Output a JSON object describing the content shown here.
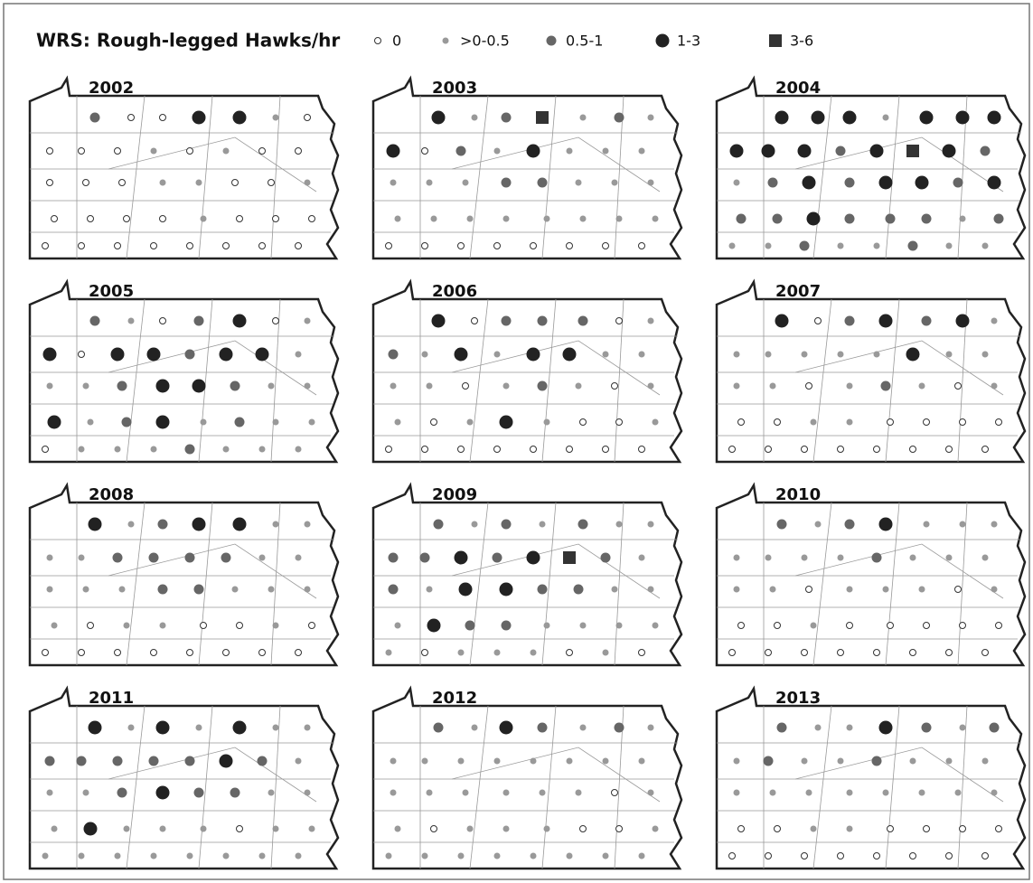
{
  "title": "WRS: Rough-legged Hawks/hr",
  "legend": [
    "0",
    ">0-0.5",
    "0.5-1",
    "1-3",
    "3-6"
  ],
  "maps": [
    {
      "year": "2002",
      "classes": [
        2,
        0,
        0,
        3,
        3,
        1,
        0,
        0,
        0,
        0,
        1,
        0,
        1,
        0,
        0,
        0,
        0,
        0,
        1,
        1,
        0,
        0,
        1,
        0,
        0,
        0,
        0,
        1,
        0,
        0,
        0,
        0,
        0,
        0,
        0,
        0,
        0,
        0,
        0
      ]
    },
    {
      "year": "2003",
      "classes": [
        3,
        1,
        2,
        4,
        1,
        2,
        1,
        3,
        0,
        2,
        1,
        3,
        1,
        1,
        1,
        1,
        1,
        1,
        2,
        2,
        1,
        1,
        1,
        1,
        1,
        1,
        1,
        1,
        1,
        1,
        1,
        0,
        0,
        0,
        0,
        0,
        0,
        0,
        0
      ]
    },
    {
      "year": "2004",
      "classes": [
        3,
        3,
        3,
        1,
        3,
        3,
        3,
        3,
        3,
        3,
        2,
        3,
        4,
        3,
        2,
        1,
        2,
        3,
        2,
        3,
        3,
        2,
        3,
        2,
        2,
        3,
        2,
        2,
        2,
        1,
        2,
        1,
        1,
        2,
        1,
        1,
        2,
        1,
        1
      ]
    },
    {
      "year": "2005",
      "classes": [
        2,
        1,
        0,
        2,
        3,
        0,
        1,
        3,
        0,
        3,
        3,
        2,
        3,
        3,
        1,
        1,
        1,
        2,
        3,
        3,
        2,
        1,
        1,
        3,
        1,
        2,
        3,
        1,
        2,
        1,
        1,
        0,
        1,
        1,
        1,
        2,
        1,
        1,
        1
      ]
    },
    {
      "year": "2006",
      "classes": [
        3,
        0,
        2,
        2,
        2,
        0,
        1,
        2,
        1,
        3,
        1,
        3,
        3,
        1,
        1,
        1,
        1,
        0,
        1,
        2,
        1,
        0,
        1,
        1,
        0,
        1,
        3,
        1,
        0,
        0,
        1,
        0,
        0,
        0,
        0,
        0,
        0,
        0,
        0
      ]
    },
    {
      "year": "2007",
      "classes": [
        3,
        0,
        2,
        3,
        2,
        3,
        1,
        1,
        1,
        1,
        1,
        1,
        3,
        1,
        1,
        1,
        1,
        0,
        1,
        2,
        1,
        0,
        1,
        0,
        0,
        1,
        1,
        0,
        0,
        0,
        0,
        0,
        0,
        0,
        0,
        0,
        0,
        0,
        0
      ]
    },
    {
      "year": "2008",
      "classes": [
        3,
        1,
        2,
        3,
        3,
        1,
        1,
        1,
        1,
        2,
        2,
        2,
        2,
        1,
        1,
        1,
        1,
        1,
        2,
        2,
        1,
        1,
        1,
        1,
        0,
        1,
        1,
        0,
        0,
        1,
        0,
        0,
        0,
        0,
        0,
        0,
        0,
        0,
        0
      ]
    },
    {
      "year": "2009",
      "classes": [
        2,
        1,
        2,
        1,
        2,
        1,
        1,
        2,
        2,
        3,
        2,
        3,
        4,
        2,
        1,
        2,
        1,
        3,
        3,
        2,
        2,
        1,
        1,
        1,
        3,
        2,
        2,
        1,
        1,
        1,
        1,
        1,
        0,
        1,
        1,
        1,
        0,
        1,
        0
      ]
    },
    {
      "year": "2010",
      "classes": [
        2,
        1,
        2,
        3,
        1,
        1,
        1,
        1,
        1,
        1,
        1,
        2,
        1,
        1,
        1,
        1,
        1,
        0,
        1,
        1,
        1,
        0,
        1,
        0,
        0,
        1,
        0,
        0,
        0,
        0,
        0,
        0,
        0,
        0,
        0,
        0,
        0,
        0,
        0
      ]
    },
    {
      "year": "2011",
      "classes": [
        3,
        1,
        3,
        1,
        3,
        1,
        1,
        2,
        2,
        2,
        2,
        2,
        3,
        2,
        1,
        1,
        1,
        2,
        3,
        2,
        2,
        1,
        1,
        1,
        3,
        1,
        1,
        1,
        0,
        1,
        1,
        1,
        1,
        1,
        1,
        1,
        1,
        1,
        1
      ]
    },
    {
      "year": "2012",
      "classes": [
        2,
        1,
        3,
        2,
        1,
        2,
        1,
        1,
        1,
        1,
        1,
        1,
        1,
        1,
        1,
        1,
        1,
        1,
        1,
        1,
        1,
        0,
        1,
        1,
        0,
        1,
        1,
        1,
        0,
        0,
        1,
        1,
        1,
        1,
        1,
        1,
        1,
        1,
        1
      ]
    },
    {
      "year": "2013",
      "classes": [
        2,
        1,
        1,
        3,
        2,
        1,
        2,
        1,
        2,
        1,
        1,
        2,
        1,
        1,
        1,
        1,
        1,
        1,
        1,
        1,
        1,
        1,
        1,
        0,
        0,
        1,
        1,
        0,
        0,
        0,
        0,
        0,
        0,
        0,
        0,
        0,
        0,
        0,
        0
      ]
    }
  ]
}
